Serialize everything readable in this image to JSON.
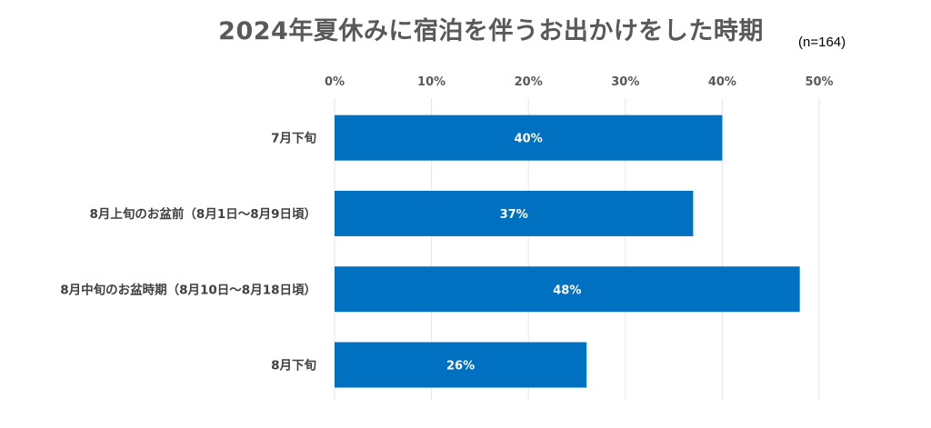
{
  "chart_data": {
    "type": "bar",
    "orientation": "horizontal",
    "title": "2024年夏休みに宿泊を伴うお出かけをした時期",
    "note": "(n=164)",
    "categories": [
      "7月下旬",
      "8月上旬のお盆前（8月1日～8月9日頃）",
      "8月中旬のお盆時期（8月10日～8月18日頃）",
      "8月下旬"
    ],
    "values": [
      40,
      37,
      48,
      26
    ],
    "data_labels": [
      "40%",
      "37%",
      "48%",
      "26%"
    ],
    "value_unit": "%",
    "xlim": [
      0,
      50
    ],
    "x_ticks": [
      0,
      10,
      20,
      30,
      40,
      50
    ],
    "x_tick_labels": [
      "0%",
      "10%",
      "20%",
      "30%",
      "40%",
      "50%"
    ],
    "axis_position": "top",
    "grid": true,
    "legend": "none",
    "bar_color": "#0070C0",
    "grid_color": "#E6E6E6"
  }
}
